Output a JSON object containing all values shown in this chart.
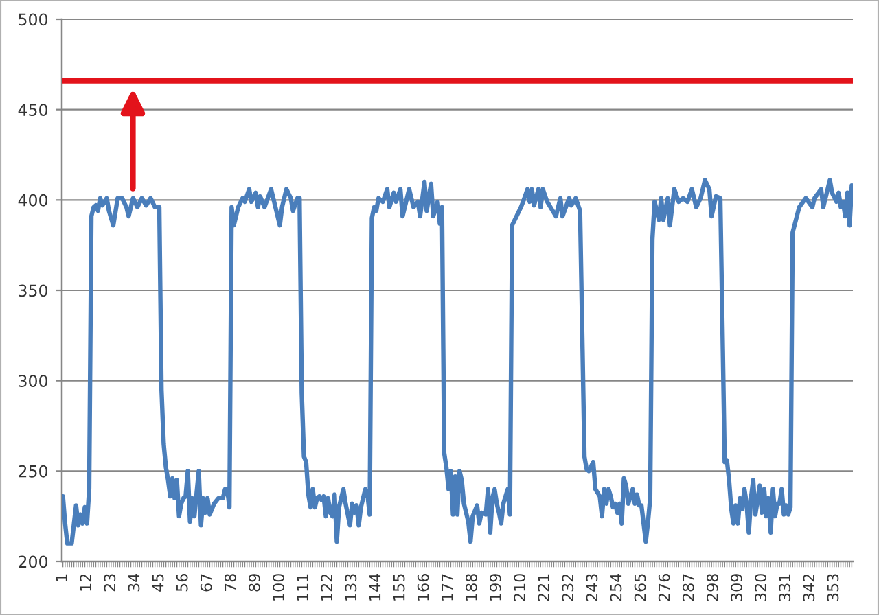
{
  "chart_data": {
    "type": "line",
    "color": "#4a7ebb",
    "x": [
      1,
      2,
      3,
      5,
      7,
      8,
      9,
      10,
      11,
      12,
      13,
      14,
      15,
      16,
      17,
      18,
      19,
      21,
      22,
      24,
      26,
      28,
      30,
      31,
      33,
      35,
      37,
      39,
      41,
      43,
      45,
      46,
      47,
      48,
      49,
      50,
      51,
      52,
      53,
      54,
      55,
      56,
      57,
      58,
      59,
      60,
      61,
      63,
      64,
      65,
      66,
      67,
      68,
      70,
      72,
      74,
      75,
      76,
      77,
      78,
      79,
      80,
      81,
      83,
      84,
      86,
      87,
      89,
      90,
      91,
      93,
      96,
      100,
      101,
      103,
      105,
      106,
      108,
      109,
      110,
      111,
      112,
      113,
      114,
      115,
      116,
      117,
      118,
      119,
      120,
      121,
      122,
      123,
      124,
      125,
      126,
      127,
      128,
      129,
      130,
      132,
      133,
      134,
      135,
      136,
      137,
      138,
      139,
      140,
      141,
      142,
      143,
      144,
      145,
      147,
      149,
      150,
      152,
      153,
      155,
      156,
      158,
      159,
      161,
      163,
      164,
      166,
      167,
      169,
      170,
      172,
      173,
      174,
      175,
      176,
      177,
      178,
      179,
      180,
      181,
      182,
      183,
      184,
      186,
      187,
      188,
      190,
      191,
      192,
      194,
      195,
      196,
      197,
      198,
      199,
      200,
      201,
      202,
      204,
      205,
      206,
      208,
      210,
      211,
      213,
      214,
      215,
      216,
      218,
      219,
      220,
      222,
      226,
      228,
      229,
      232,
      233,
      235,
      237,
      239,
      240,
      241,
      243,
      244,
      246,
      247,
      248,
      249,
      250,
      251,
      252,
      253,
      254,
      255,
      256,
      257,
      258,
      259,
      261,
      262,
      263,
      264,
      265,
      267,
      268,
      269,
      270,
      271,
      273,
      274,
      275,
      277,
      278,
      280,
      282,
      284,
      286,
      288,
      290,
      292,
      294,
      296,
      297,
      299,
      301,
      303,
      304,
      305,
      306,
      307,
      308,
      309,
      310,
      311,
      312,
      313,
      314,
      315,
      316,
      317,
      319,
      320,
      321,
      322,
      323,
      324,
      325,
      326,
      327,
      328,
      329,
      330,
      331,
      332,
      333,
      334,
      337,
      340,
      343,
      344,
      347,
      348,
      350,
      351,
      352,
      354,
      355,
      356,
      357,
      358,
      359,
      360,
      361
    ],
    "values": [
      236,
      221,
      210,
      210,
      231,
      220,
      226,
      221,
      230,
      221,
      240,
      391,
      396,
      397,
      394,
      401,
      397,
      401,
      394,
      386,
      401,
      401,
      396,
      391,
      401,
      396,
      401,
      397,
      401,
      396,
      396,
      295,
      265,
      252,
      245,
      236,
      246,
      235,
      245,
      225,
      232,
      235,
      236,
      250,
      222,
      235,
      225,
      250,
      220,
      235,
      227,
      235,
      226,
      232,
      235,
      235,
      240,
      240,
      230,
      396,
      386,
      391,
      396,
      401,
      399,
      406,
      399,
      404,
      396,
      402,
      396,
      406,
      386,
      396,
      406,
      401,
      394,
      401,
      401,
      293,
      258,
      255,
      237,
      230,
      240,
      230,
      235,
      236,
      234,
      236,
      225,
      235,
      227,
      225,
      237,
      211,
      230,
      235,
      240,
      232,
      220,
      232,
      227,
      231,
      220,
      230,
      235,
      240,
      237,
      226,
      390,
      396,
      394,
      401,
      399,
      406,
      396,
      404,
      399,
      406,
      391,
      401,
      406,
      396,
      399,
      391,
      410,
      394,
      409,
      391,
      399,
      387,
      396,
      260,
      252,
      240,
      250,
      226,
      247,
      226,
      250,
      245,
      232,
      222,
      211,
      225,
      231,
      221,
      227,
      226,
      240,
      216,
      235,
      240,
      232,
      227,
      221,
      232,
      240,
      226,
      386,
      391,
      396,
      399,
      406,
      399,
      406,
      397,
      406,
      396,
      406,
      399,
      391,
      401,
      391,
      401,
      397,
      401,
      394,
      258,
      251,
      250,
      255,
      240,
      236,
      225,
      240,
      232,
      240,
      236,
      230,
      232,
      227,
      232,
      221,
      246,
      242,
      232,
      240,
      232,
      237,
      231,
      231,
      211,
      222,
      235,
      378,
      399,
      389,
      401,
      389,
      401,
      386,
      406,
      399,
      401,
      399,
      406,
      396,
      401,
      411,
      406,
      391,
      402,
      401,
      255,
      256,
      245,
      229,
      221,
      231,
      221,
      235,
      229,
      240,
      232,
      216,
      235,
      245,
      226,
      242,
      227,
      240,
      225,
      235,
      216,
      240,
      225,
      232,
      232,
      240,
      226,
      231,
      226,
      230,
      382,
      396,
      401,
      396,
      401,
      406,
      396,
      406,
      411,
      404,
      399,
      404,
      396,
      399,
      391,
      404,
      386,
      408
    ],
    "xlim": [
      0.5,
      361.5
    ],
    "xticks": [
      1,
      12,
      23,
      34,
      45,
      56,
      67,
      78,
      89,
      100,
      111,
      122,
      133,
      144,
      155,
      166,
      177,
      188,
      199,
      210,
      221,
      232,
      243,
      254,
      265,
      276,
      287,
      298,
      309,
      320,
      331,
      342,
      353
    ],
    "ylim": [
      200,
      500
    ],
    "yticks": [
      200,
      250,
      300,
      350,
      400,
      450,
      500
    ],
    "grid": "y",
    "ref_lines": [
      {
        "axis": "y",
        "value": 466,
        "color": "#e3131b"
      }
    ]
  }
}
